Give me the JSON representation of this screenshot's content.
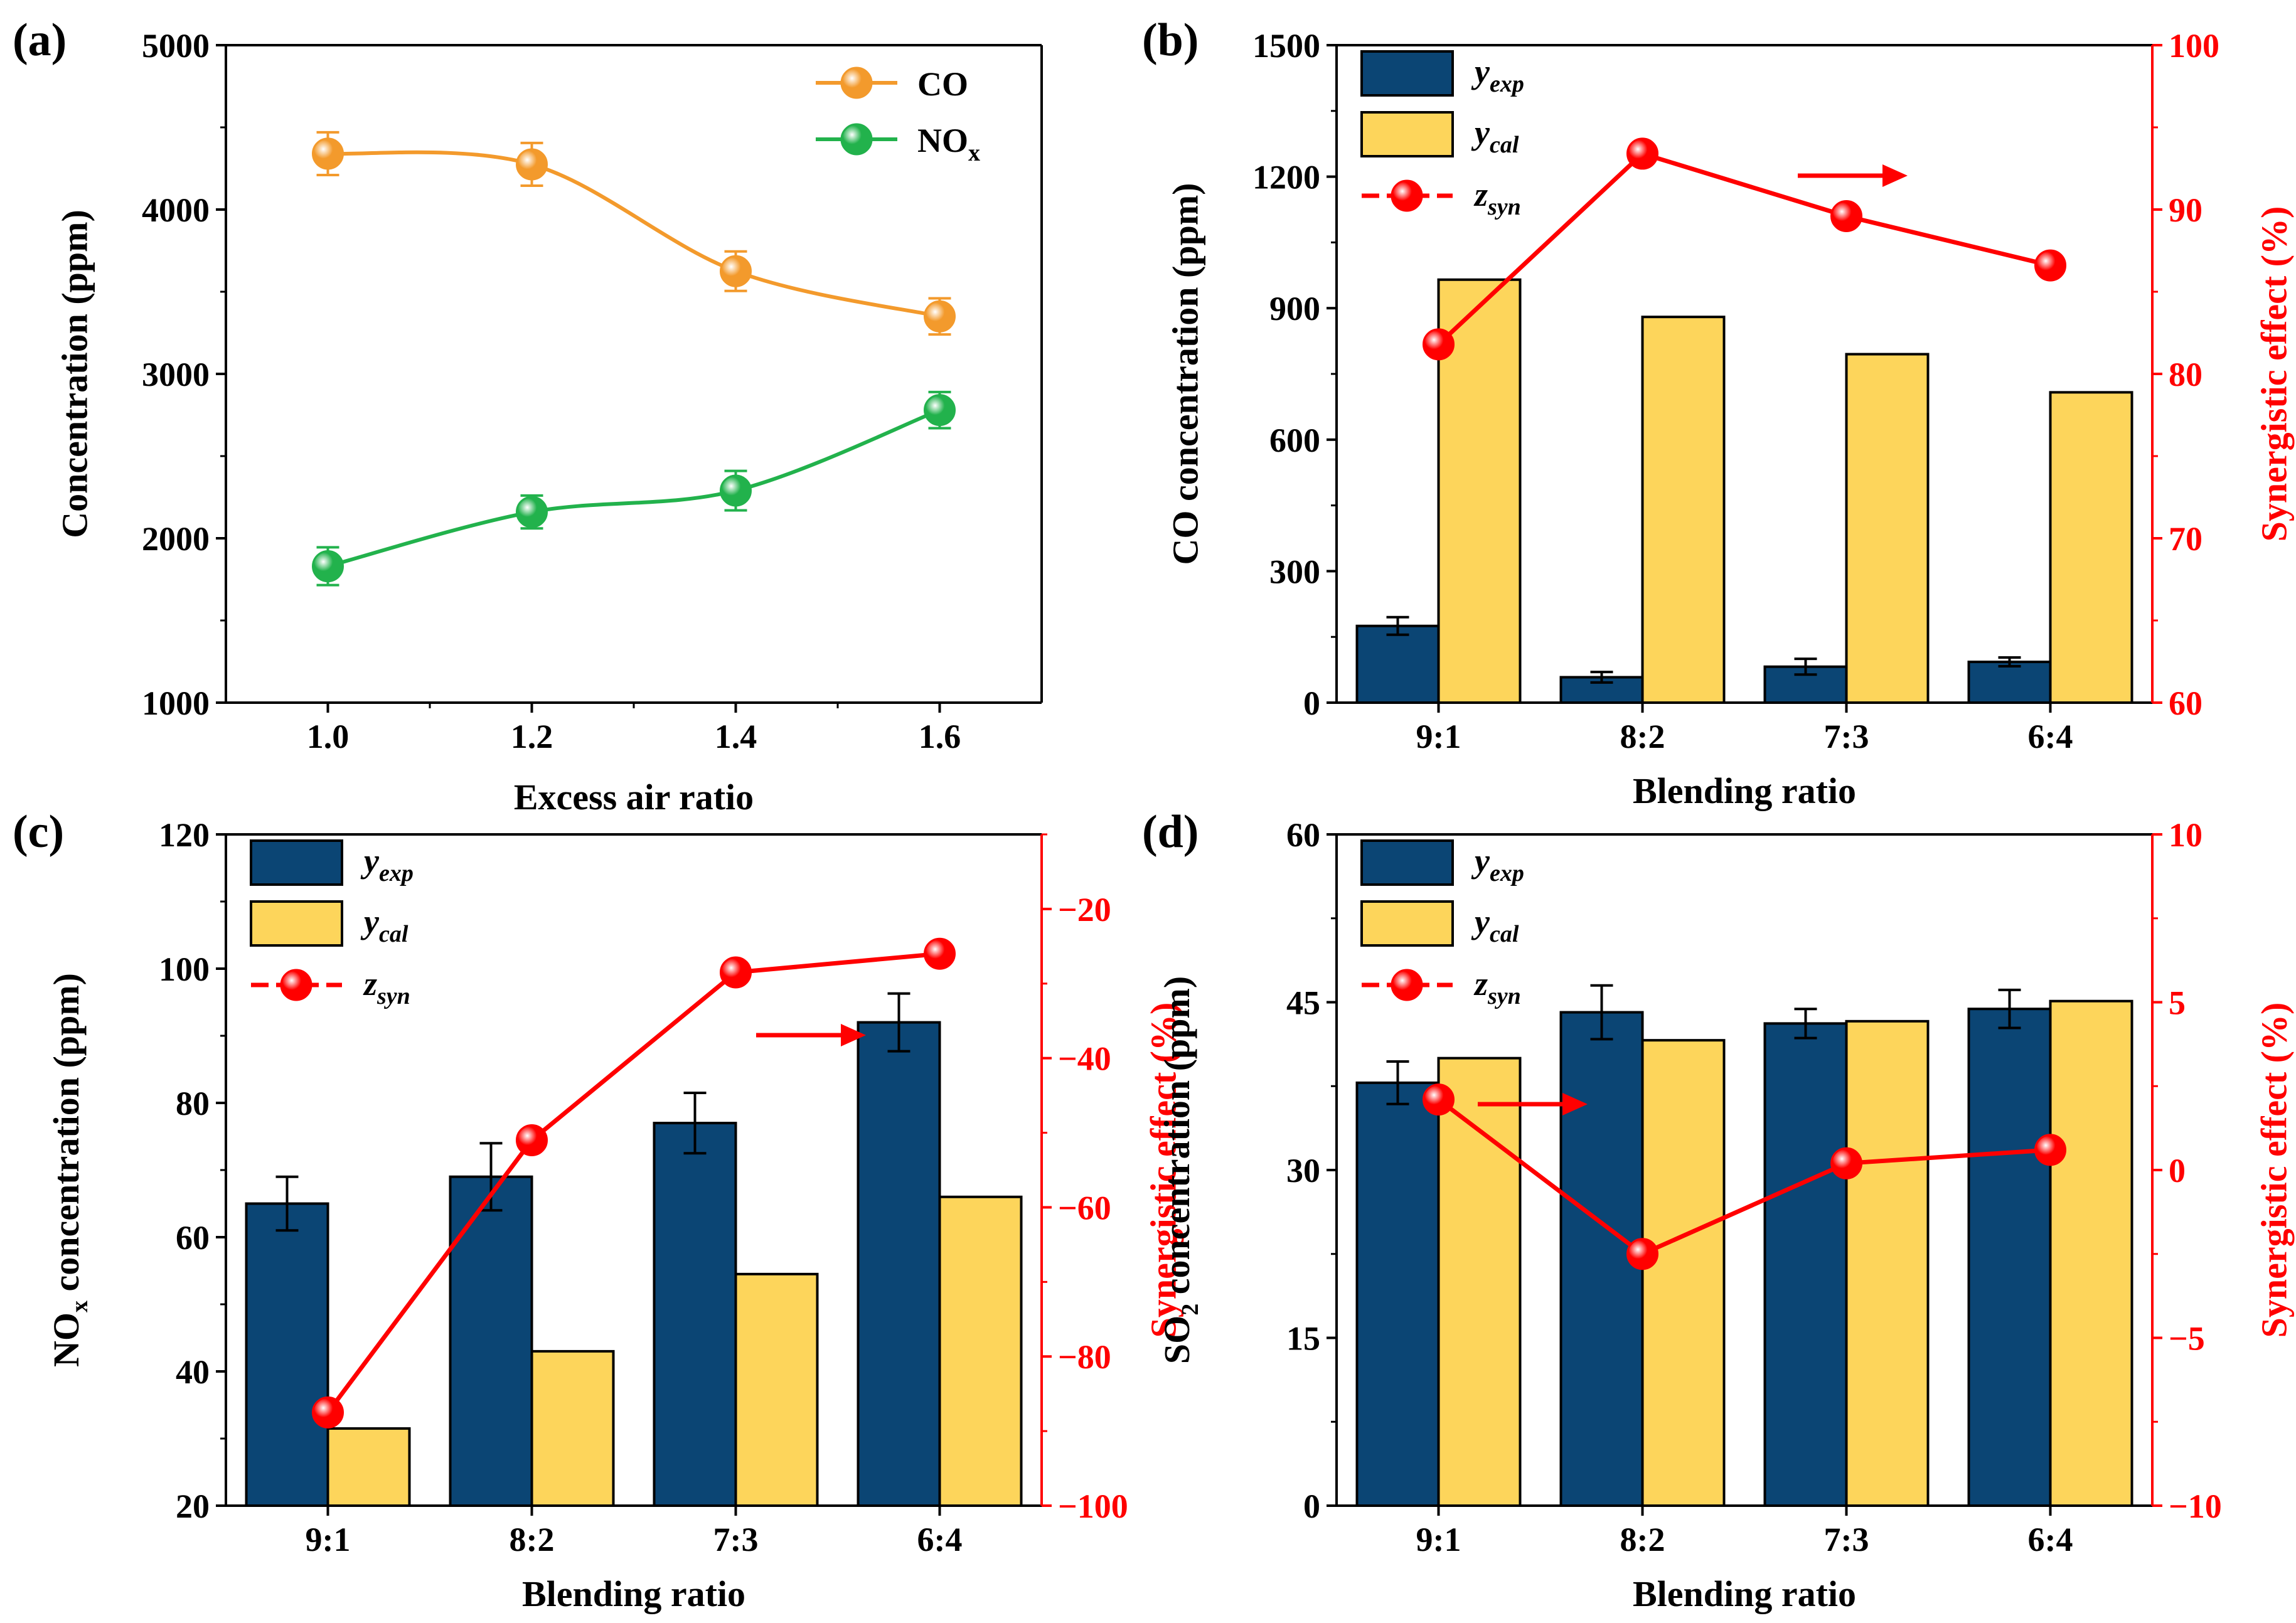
{
  "colors": {
    "co": "#f39a2c",
    "nox": "#22b24c",
    "bar_exp": "#0b4574",
    "bar_cal": "#fdd55b",
    "syn": "#ff0000",
    "axis": "#000000"
  },
  "chart_data": [
    {
      "id": "a",
      "type": "line",
      "panel_label": "(a)",
      "xlabel": "Excess air ratio",
      "ylabel": "Concentration (ppm)",
      "x": [
        1.0,
        1.2,
        1.4,
        1.6
      ],
      "x_ticks": [
        "1.0",
        "1.2",
        "1.4",
        "1.6"
      ],
      "xlim": [
        0.9,
        1.7
      ],
      "ylim": [
        1000,
        5000
      ],
      "y_ticks": [
        1000,
        2000,
        3000,
        4000,
        5000
      ],
      "series": [
        {
          "name": "CO",
          "sub": "",
          "values": [
            4340,
            4275,
            3625,
            3350
          ],
          "errors": [
            130,
            130,
            120,
            110
          ],
          "color": "#f39a2c"
        },
        {
          "name": "NO",
          "sub": "x",
          "values": [
            1830,
            2160,
            2290,
            2780
          ],
          "errors": [
            115,
            100,
            120,
            110
          ],
          "color": "#22b24c"
        }
      ],
      "legend_position": "top-right"
    },
    {
      "id": "b",
      "type": "bar",
      "panel_label": "(b)",
      "xlabel": "Blending ratio",
      "ylabel": "CO concentration (ppm)",
      "y2label": "Synergistic effect (%)",
      "categories": [
        "9:1",
        "8:2",
        "7:3",
        "6:4"
      ],
      "ylim": [
        0,
        1500
      ],
      "y_ticks": [
        0,
        300,
        600,
        900,
        1200,
        1500
      ],
      "y2lim": [
        60,
        100
      ],
      "y2_ticks": [
        60,
        70,
        80,
        90,
        100
      ],
      "series": [
        {
          "name": "y",
          "sub": "exp",
          "values": [
            175,
            58,
            82,
            93
          ],
          "errors": [
            20,
            12,
            18,
            10
          ]
        },
        {
          "name": "y",
          "sub": "cal",
          "values": [
            965,
            880,
            795,
            708
          ]
        }
      ],
      "synergy": {
        "name": "z",
        "sub": "syn",
        "values": [
          81.8,
          93.4,
          89.6,
          86.6
        ]
      },
      "arrow_direction": "right",
      "legend_position": "top-left"
    },
    {
      "id": "c",
      "type": "bar",
      "panel_label": "(c)",
      "xlabel": "Blending ratio",
      "ylabel": "NO",
      "ylabel_sub": "x",
      "ylabel_rest": " concentration (ppm)",
      "y2label": "Synergistic effect (%)",
      "categories": [
        "9:1",
        "8:2",
        "7:3",
        "6:4"
      ],
      "ylim": [
        20,
        120
      ],
      "y_ticks": [
        20,
        40,
        60,
        80,
        100,
        120
      ],
      "y2lim": [
        -100,
        -10
      ],
      "y2_ticks": [
        -100,
        -80,
        -60,
        -40,
        -20
      ],
      "y2_tick_labels": [
        "−100",
        "−80",
        "−60",
        "−40",
        "−20"
      ],
      "series": [
        {
          "name": "y",
          "sub": "exp",
          "values": [
            65,
            69,
            77,
            92
          ],
          "errors": [
            4,
            5,
            4.5,
            4.3
          ]
        },
        {
          "name": "y",
          "sub": "cal",
          "values": [
            31.5,
            43,
            54.5,
            66
          ]
        }
      ],
      "synergy": {
        "name": "z",
        "sub": "syn",
        "values": [
          -87.5,
          -51,
          -28.5,
          -26
        ]
      },
      "arrow_direction": "right",
      "legend_position": "top-left"
    },
    {
      "id": "d",
      "type": "bar",
      "panel_label": "(d)",
      "xlabel": "Blending ratio",
      "ylabel": "SO",
      "ylabel_sub": "2",
      "ylabel_rest": " concentration (ppm)",
      "y2label": "Synergistic effect (%)",
      "categories": [
        "9:1",
        "8:2",
        "7:3",
        "6:4"
      ],
      "ylim": [
        0,
        60
      ],
      "y_ticks": [
        0,
        15,
        30,
        45,
        60
      ],
      "y2lim": [
        -10,
        10
      ],
      "y2_ticks": [
        -10,
        -5,
        0,
        5,
        10
      ],
      "y2_tick_labels": [
        "−10",
        "−5",
        "0",
        "5",
        "10"
      ],
      "series": [
        {
          "name": "y",
          "sub": "exp",
          "values": [
            37.8,
            44.1,
            43.1,
            44.4
          ],
          "errors": [
            1.9,
            2.4,
            1.3,
            1.7
          ]
        },
        {
          "name": "y",
          "sub": "cal",
          "values": [
            40,
            41.6,
            43.3,
            45.1
          ]
        }
      ],
      "synergy": {
        "name": "z",
        "sub": "syn",
        "values": [
          2.1,
          -2.5,
          0.2,
          0.6
        ]
      },
      "arrow_direction": "right",
      "legend_position": "top-left"
    }
  ]
}
